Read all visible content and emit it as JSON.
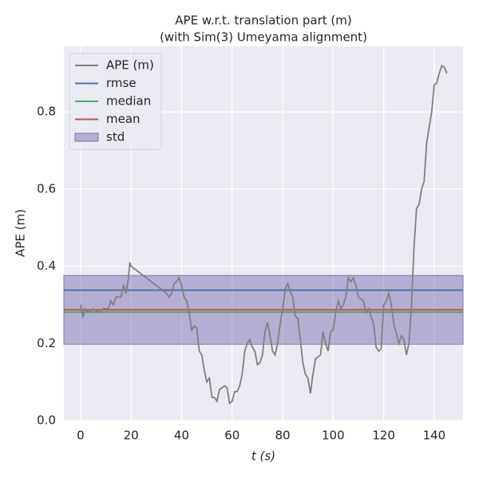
{
  "chart_data": {
    "type": "line",
    "title": "APE w.r.t. translation part (m)",
    "subtitle": "(with Sim(3) Umeyama alignment)",
    "x_label": "t (s)",
    "y_label": "APE (m)",
    "xlim": [
      -6.6,
      151.4
    ],
    "ylim": [
      0,
      0.97
    ],
    "xticks": [
      0,
      20,
      40,
      60,
      80,
      100,
      120,
      140
    ],
    "yticks": [
      {
        "value": 0,
        "label": "0.0"
      },
      0.2,
      0.4,
      0.6,
      0.8
    ],
    "grid": true,
    "legend": "upper left",
    "x": [
      0,
      1,
      2,
      3,
      5,
      7,
      9,
      11,
      12,
      13,
      14,
      16,
      17,
      18,
      19,
      19.5,
      20,
      34,
      35,
      36,
      37,
      38,
      39,
      40,
      41,
      42,
      43,
      44,
      45,
      46,
      47,
      48,
      49,
      50,
      51,
      52,
      53,
      54,
      55,
      57,
      58,
      59,
      60,
      61,
      62,
      63,
      64,
      65,
      66,
      67,
      68,
      69,
      70,
      71,
      72,
      73,
      74,
      75,
      76,
      77,
      78,
      79,
      80,
      81,
      82,
      83,
      84,
      85,
      86,
      87,
      88,
      89,
      90,
      91,
      92,
      93,
      94,
      95,
      96,
      97,
      98,
      99,
      100,
      101,
      102,
      103,
      104,
      105,
      106,
      107,
      108,
      109,
      110,
      112,
      113,
      114,
      116,
      117,
      118,
      119,
      120,
      121,
      122,
      123,
      124,
      126,
      127,
      128,
      129,
      130,
      131,
      132,
      133,
      134,
      135,
      136,
      137,
      138,
      139,
      140,
      141,
      142,
      143,
      144,
      145
    ],
    "series": [
      {
        "name": "APE (m)",
        "color": "#808080",
        "values": [
          0.3,
          0.27,
          0.29,
          0.28,
          0.29,
          0.28,
          0.29,
          0.29,
          0.31,
          0.3,
          0.32,
          0.32,
          0.35,
          0.33,
          0.37,
          0.41,
          0.4,
          0.33,
          0.32,
          0.33,
          0.355,
          0.36,
          0.37,
          0.35,
          0.32,
          0.31,
          0.28,
          0.235,
          0.245,
          0.24,
          0.18,
          0.17,
          0.13,
          0.1,
          0.11,
          0.06,
          0.06,
          0.05,
          0.08,
          0.09,
          0.085,
          0.045,
          0.05,
          0.075,
          0.075,
          0.09,
          0.12,
          0.18,
          0.2,
          0.21,
          0.19,
          0.18,
          0.145,
          0.15,
          0.17,
          0.23,
          0.255,
          0.22,
          0.18,
          0.17,
          0.2,
          0.25,
          0.29,
          0.34,
          0.355,
          0.335,
          0.32,
          0.27,
          0.265,
          0.21,
          0.15,
          0.12,
          0.11,
          0.07,
          0.12,
          0.16,
          0.165,
          0.17,
          0.23,
          0.2,
          0.18,
          0.23,
          0.235,
          0.28,
          0.31,
          0.29,
          0.3,
          0.32,
          0.37,
          0.36,
          0.37,
          0.35,
          0.32,
          0.31,
          0.28,
          0.29,
          0.25,
          0.19,
          0.18,
          0.185,
          0.3,
          0.31,
          0.33,
          0.3,
          0.25,
          0.2,
          0.22,
          0.21,
          0.17,
          0.2,
          0.3,
          0.45,
          0.55,
          0.56,
          0.6,
          0.62,
          0.72,
          0.76,
          0.8,
          0.87,
          0.875,
          0.9,
          0.92,
          0.915,
          0.9
        ]
      }
    ],
    "stats": [
      {
        "name": "rmse",
        "color": "#4c72b0",
        "value": 0.338
      },
      {
        "name": "median",
        "color": "#55a868",
        "value": 0.281
      },
      {
        "name": "mean",
        "color": "#c44e52",
        "value": 0.287
      }
    ],
    "std": {
      "name": "std",
      "color": "#8172b2",
      "value": 0.089
    }
  }
}
